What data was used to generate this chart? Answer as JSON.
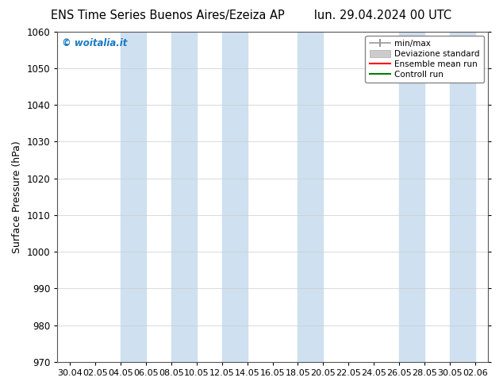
{
  "title_left": "ENS Time Series Buenos Aires/Ezeiza AP",
  "title_right": "lun. 29.04.2024 00 UTC",
  "ylabel": "Surface Pressure (hPa)",
  "ylim": [
    970,
    1060
  ],
  "yticks": [
    970,
    980,
    990,
    1000,
    1010,
    1020,
    1030,
    1040,
    1050,
    1060
  ],
  "xtick_labels": [
    "30.04",
    "02.05",
    "04.05",
    "06.05",
    "08.05",
    "10.05",
    "12.05",
    "14.05",
    "16.05",
    "18.05",
    "20.05",
    "22.05",
    "24.05",
    "26.05",
    "28.05",
    "30.05",
    "02.06"
  ],
  "background_color": "#ffffff",
  "plot_bg_color": "#ffffff",
  "shaded_band_color": "#cfe0f0",
  "watermark_text": "© woitalia.it",
  "watermark_color": "#1a7abf",
  "legend_entries": [
    "min/max",
    "Deviazione standard",
    "Ensemble mean run",
    "Controll run"
  ],
  "legend_colors_line": [
    "#999999",
    "#bbbbbb",
    "#ff0000",
    "#008000"
  ],
  "title_fontsize": 10.5,
  "axis_label_fontsize": 9,
  "tick_fontsize": 8.5,
  "shaded_ranges": [
    [
      "04.05",
      "06.05"
    ],
    [
      "08.05",
      "10.05"
    ],
    [
      "12.05",
      "14.05"
    ],
    [
      "18.05",
      "20.05"
    ],
    [
      "26.05",
      "28.05"
    ],
    [
      "30.05",
      "02.06"
    ]
  ]
}
